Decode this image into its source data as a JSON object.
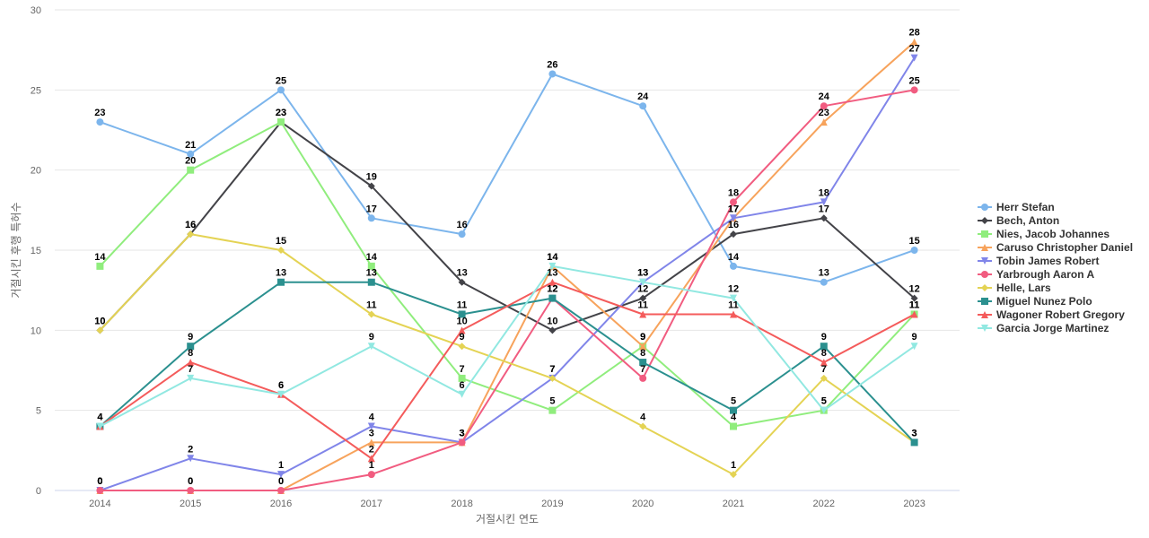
{
  "chart_data": {
    "type": "line",
    "xlabel": "거절시킨 연도",
    "ylabel": "거절시킨 후행 특허수",
    "ylim": [
      0,
      30
    ],
    "y_ticks": [
      0,
      5,
      10,
      15,
      20,
      25,
      30
    ],
    "grid": true,
    "legend_position": "right",
    "categories": [
      "2014",
      "2015",
      "2016",
      "2017",
      "2018",
      "2019",
      "2020",
      "2021",
      "2022",
      "2023"
    ],
    "series": [
      {
        "name": "Herr Stefan",
        "color": "#7cb5ec",
        "marker": "circle",
        "values": [
          23,
          21,
          25,
          17,
          16,
          26,
          24,
          14,
          13,
          15
        ]
      },
      {
        "name": "Bech, Anton",
        "color": "#434348",
        "marker": "diamond",
        "values": [
          10,
          16,
          23,
          19,
          13,
          10,
          12,
          16,
          17,
          12
        ]
      },
      {
        "name": "Nies, Jacob Johannes",
        "color": "#90ed7d",
        "marker": "square",
        "values": [
          14,
          20,
          23,
          14,
          7,
          5,
          9,
          4,
          5,
          11
        ]
      },
      {
        "name": "Caruso Christopher Daniel",
        "color": "#f7a35c",
        "marker": "triangle",
        "values": [
          0,
          0,
          0,
          3,
          3,
          14,
          9,
          17,
          23,
          28
        ]
      },
      {
        "name": "Tobin James Robert",
        "color": "#8085e9",
        "marker": "triangle-down",
        "values": [
          0,
          2,
          1,
          4,
          3,
          7,
          13,
          17,
          18,
          27
        ]
      },
      {
        "name": "Yarbrough Aaron A",
        "color": "#f15c80",
        "marker": "circle",
        "values": [
          0,
          0,
          0,
          1,
          3,
          12,
          7,
          18,
          24,
          25
        ]
      },
      {
        "name": "Helle, Lars",
        "color": "#e4d354",
        "marker": "diamond",
        "values": [
          10,
          16,
          15,
          11,
          9,
          7,
          4,
          1,
          7,
          3
        ]
      },
      {
        "name": "Miguel Nunez Polo",
        "color": "#2b908f",
        "marker": "square",
        "values": [
          4,
          9,
          13,
          13,
          11,
          12,
          8,
          5,
          9,
          3
        ]
      },
      {
        "name": "Wagoner Robert Gregory",
        "color": "#f45b5b",
        "marker": "triangle",
        "values": [
          4,
          8,
          6,
          2,
          10,
          13,
          11,
          11,
          8,
          11
        ]
      },
      {
        "name": "Garcia Jorge Martinez",
        "color": "#91e8e1",
        "marker": "triangle-down",
        "values": [
          4,
          7,
          6,
          9,
          6,
          14,
          13,
          12,
          5,
          9
        ]
      }
    ]
  }
}
